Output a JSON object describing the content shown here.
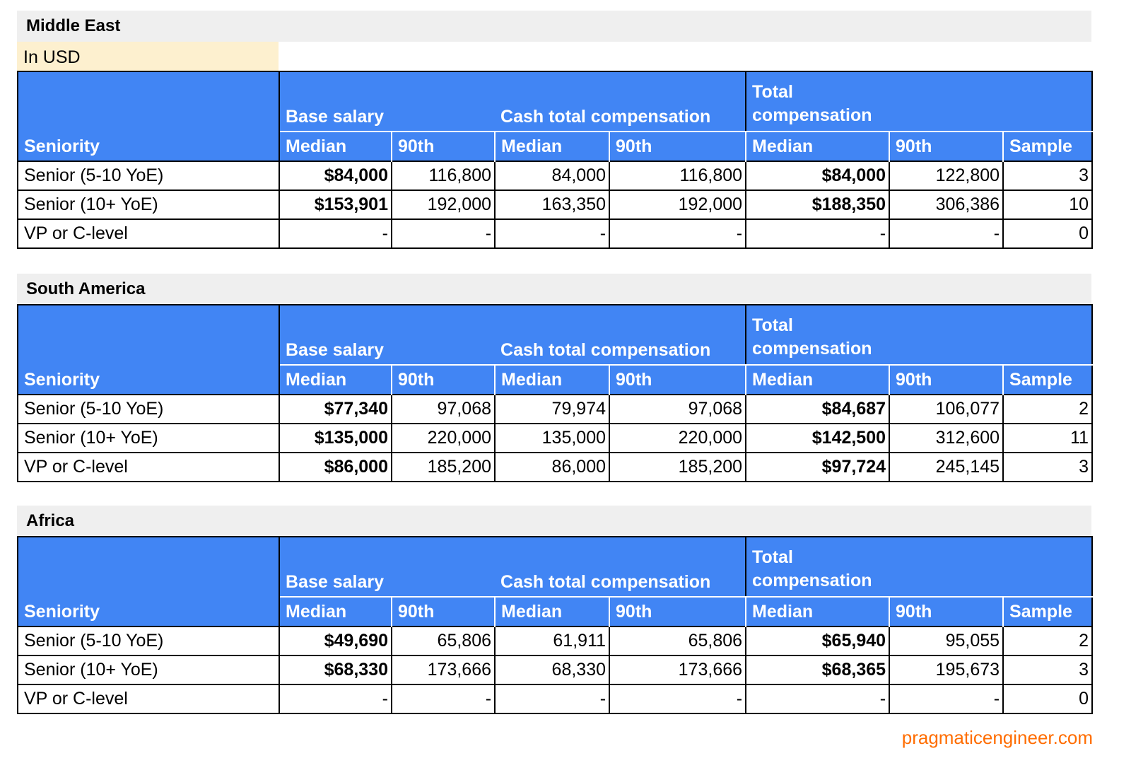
{
  "headers": {
    "seniority": "Seniority",
    "base_salary": "Base salary",
    "cash_total": "Cash total compensation",
    "total_comp": "Total compensation",
    "median": "Median",
    "p90": "90th",
    "sample": "Sample"
  },
  "regions": [
    {
      "title": "Middle East",
      "currency_note": "In USD",
      "rows": [
        {
          "seniority": "Senior (5-10 YoE)",
          "base_median": "$84,000",
          "base_90th": "116,800",
          "cash_median": "84,000",
          "cash_90th": "116,800",
          "total_median": "$84,000",
          "total_90th": "122,800",
          "sample": "3"
        },
        {
          "seniority": "Senior (10+ YoE)",
          "base_median": "$153,901",
          "base_90th": "192,000",
          "cash_median": "163,350",
          "cash_90th": "192,000",
          "total_median": "$188,350",
          "total_90th": "306,386",
          "sample": "10"
        },
        {
          "seniority": "VP or C-level",
          "base_median": "-",
          "base_90th": "-",
          "cash_median": "-",
          "cash_90th": "-",
          "total_median": "-",
          "total_90th": "-",
          "sample": "0"
        }
      ]
    },
    {
      "title": "South America",
      "rows": [
        {
          "seniority": "Senior (5-10 YoE)",
          "base_median": "$77,340",
          "base_90th": "97,068",
          "cash_median": "79,974",
          "cash_90th": "97,068",
          "total_median": "$84,687",
          "total_90th": "106,077",
          "sample": "2"
        },
        {
          "seniority": "Senior (10+ YoE)",
          "base_median": "$135,000",
          "base_90th": "220,000",
          "cash_median": "135,000",
          "cash_90th": "220,000",
          "total_median": "$142,500",
          "total_90th": "312,600",
          "sample": "11"
        },
        {
          "seniority": "VP or C-level",
          "base_median": "$86,000",
          "base_90th": "185,200",
          "cash_median": "86,000",
          "cash_90th": "185,200",
          "total_median": "$97,724",
          "total_90th": "245,145",
          "sample": "3"
        }
      ]
    },
    {
      "title": "Africa",
      "rows": [
        {
          "seniority": "Senior (5-10 YoE)",
          "base_median": "$49,690",
          "base_90th": "65,806",
          "cash_median": "61,911",
          "cash_90th": "65,806",
          "total_median": "$65,940",
          "total_90th": "95,055",
          "sample": "2"
        },
        {
          "seniority": "Senior (10+ YoE)",
          "base_median": "$68,330",
          "base_90th": "173,666",
          "cash_median": "68,330",
          "cash_90th": "173,666",
          "total_median": "$68,365",
          "total_90th": "195,673",
          "sample": "3"
        },
        {
          "seniority": "VP or C-level",
          "base_median": "-",
          "base_90th": "-",
          "cash_median": "-",
          "cash_90th": "-",
          "total_median": "-",
          "total_90th": "-",
          "sample": "0"
        }
      ]
    }
  ],
  "footer": {
    "site": "pragmaticengineer.com",
    "color": "#ff6d01"
  },
  "colors": {
    "header_bg": "#4185f4",
    "title_bg": "#efefef",
    "note_bg": "#fdf0cf"
  }
}
